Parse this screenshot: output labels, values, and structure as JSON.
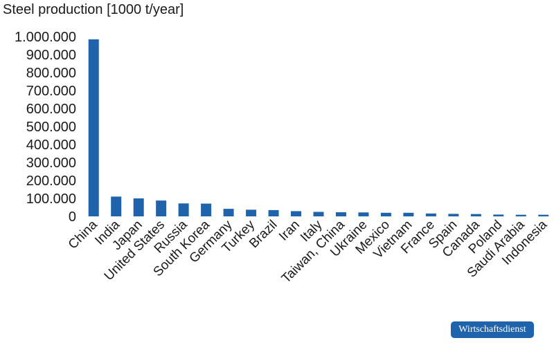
{
  "chart_data": {
    "type": "bar",
    "title": "Steel production [1000 t/year]",
    "categories": [
      "China",
      "India",
      "Japan",
      "United States",
      "Russia",
      "South Korea",
      "Germany",
      "Turkey",
      "Brazil",
      "Iran",
      "Italy",
      "Taiwan, China",
      "Ukraine",
      "Mexico",
      "Vietnam",
      "France",
      "Spain",
      "Canada",
      "Poland",
      "Saudi Arabia",
      "Indonesia"
    ],
    "values": [
      985000,
      110000,
      100000,
      88000,
      72000,
      71000,
      42000,
      37000,
      35000,
      29000,
      25000,
      23000,
      22000,
      20000,
      20000,
      16000,
      14000,
      13000,
      10000,
      9000,
      9000
    ],
    "color": "#1f63ad",
    "ylim": [
      0,
      1000000
    ],
    "yticks": [
      0,
      {
        "value": 100000,
        "label": "100.000"
      },
      {
        "value": 200000,
        "label": "200.000"
      },
      {
        "value": 300000,
        "label": "300.000"
      },
      {
        "value": 400000,
        "label": "400.000"
      },
      {
        "value": 500000,
        "label": "500.000"
      },
      {
        "value": 600000,
        "label": "600.000"
      },
      {
        "value": 700000,
        "label": "700.000"
      },
      {
        "value": 800000,
        "label": "800.000"
      },
      {
        "value": 900000,
        "label": "900.000"
      },
      {
        "value": 1000000,
        "label": "1.000.000"
      }
    ],
    "grid": false
  },
  "badge": "Wirtschaftsdienst"
}
